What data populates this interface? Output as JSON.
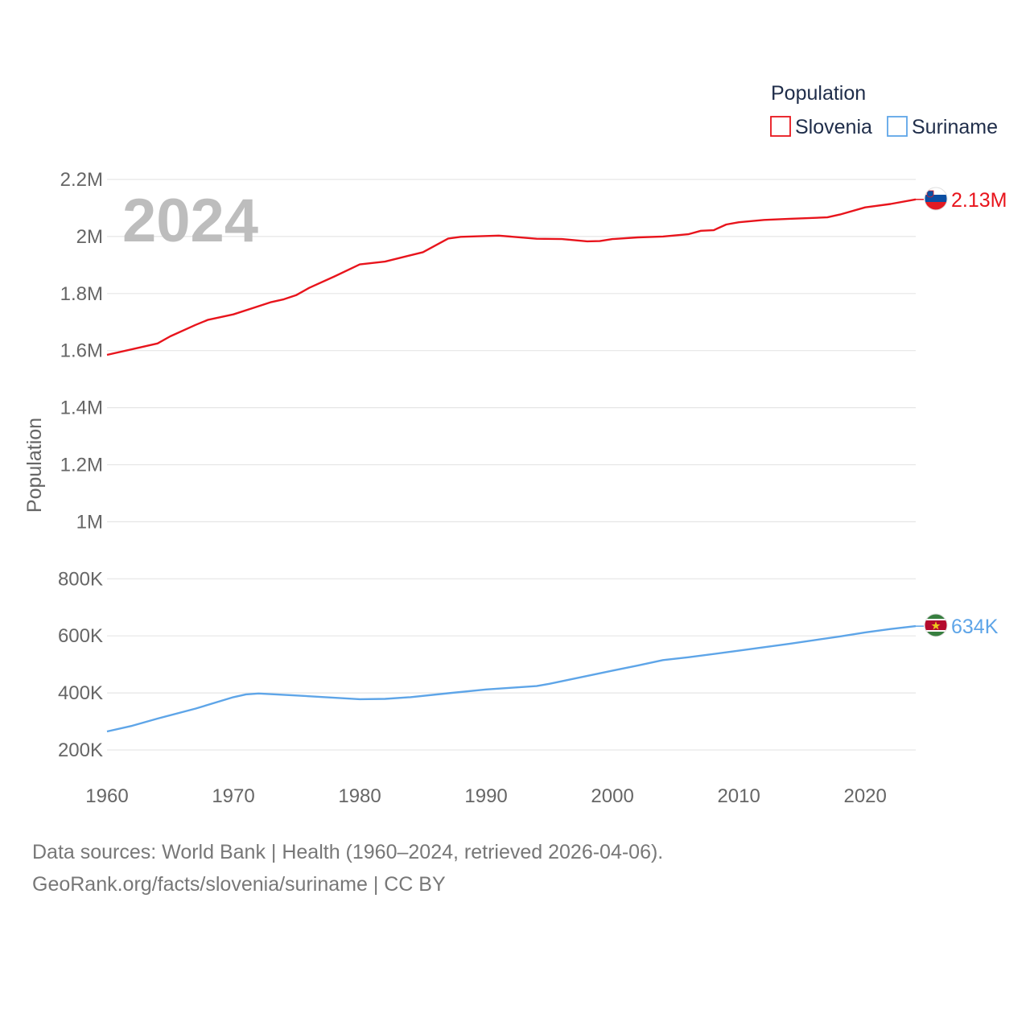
{
  "chart_data": {
    "type": "line",
    "ylabel": "Population",
    "ylim": [
      200000,
      2200000
    ],
    "xlim": [
      1960,
      2024
    ],
    "y_ticks": [
      200000,
      400000,
      600000,
      800000,
      1000000,
      1200000,
      1400000,
      1600000,
      1800000,
      2000000,
      2200000
    ],
    "y_tick_labels": [
      "200K",
      "400K",
      "600K",
      "800K",
      "1M",
      "1.2M",
      "1.4M",
      "1.6M",
      "1.8M",
      "2M",
      "2.2M"
    ],
    "x_ticks": [
      1960,
      1970,
      1980,
      1990,
      2000,
      2010,
      2020
    ],
    "x_tick_labels": [
      "1960",
      "1970",
      "1980",
      "1990",
      "2000",
      "2010",
      "2020"
    ],
    "year_label": "2024",
    "legend": {
      "title": "Population",
      "position": "top-right"
    },
    "series": [
      {
        "name": "Slovenia",
        "color": "#e8141c",
        "end_label": "2.13M",
        "flag": "slovenia-flag",
        "points": [
          [
            1960,
            1585000
          ],
          [
            1962,
            1605000
          ],
          [
            1964,
            1625000
          ],
          [
            1965,
            1650000
          ],
          [
            1967,
            1690000
          ],
          [
            1968,
            1708000
          ],
          [
            1970,
            1727000
          ],
          [
            1973,
            1770000
          ],
          [
            1974,
            1780000
          ],
          [
            1975,
            1795000
          ],
          [
            1976,
            1820000
          ],
          [
            1978,
            1860000
          ],
          [
            1980,
            1902000
          ],
          [
            1982,
            1912000
          ],
          [
            1985,
            1945000
          ],
          [
            1987,
            1993000
          ],
          [
            1988,
            1999000
          ],
          [
            1991,
            2003000
          ],
          [
            1994,
            1992000
          ],
          [
            1996,
            1991000
          ],
          [
            1998,
            1983000
          ],
          [
            1999,
            1984000
          ],
          [
            2000,
            1991000
          ],
          [
            2002,
            1997000
          ],
          [
            2004,
            2000000
          ],
          [
            2006,
            2008000
          ],
          [
            2007,
            2020000
          ],
          [
            2008,
            2022000
          ],
          [
            2009,
            2042000
          ],
          [
            2010,
            2050000
          ],
          [
            2012,
            2058000
          ],
          [
            2014,
            2062000
          ],
          [
            2017,
            2067000
          ],
          [
            2018,
            2077000
          ],
          [
            2020,
            2102000
          ],
          [
            2022,
            2114000
          ],
          [
            2024,
            2130000
          ]
        ]
      },
      {
        "name": "Suriname",
        "color": "#5ea5e8",
        "end_label": "634K",
        "flag": "suriname-flag",
        "points": [
          [
            1960,
            265000
          ],
          [
            1962,
            285000
          ],
          [
            1964,
            310000
          ],
          [
            1967,
            345000
          ],
          [
            1970,
            385000
          ],
          [
            1971,
            395000
          ],
          [
            1972,
            398000
          ],
          [
            1975,
            391000
          ],
          [
            1980,
            378000
          ],
          [
            1982,
            379000
          ],
          [
            1984,
            385000
          ],
          [
            1987,
            399000
          ],
          [
            1990,
            412000
          ],
          [
            1992,
            418000
          ],
          [
            1994,
            424000
          ],
          [
            1995,
            432000
          ],
          [
            2000,
            478000
          ],
          [
            2002,
            496000
          ],
          [
            2004,
            515000
          ],
          [
            2006,
            525000
          ],
          [
            2010,
            548000
          ],
          [
            2014,
            572000
          ],
          [
            2018,
            598000
          ],
          [
            2020,
            612000
          ],
          [
            2022,
            624000
          ],
          [
            2024,
            634000
          ]
        ]
      }
    ],
    "footer": [
      "Data sources: World Bank | Health (1960–2024, retrieved 2026-04-06).",
      "GeoRank.org/facts/slovenia/suriname | CC BY"
    ]
  }
}
